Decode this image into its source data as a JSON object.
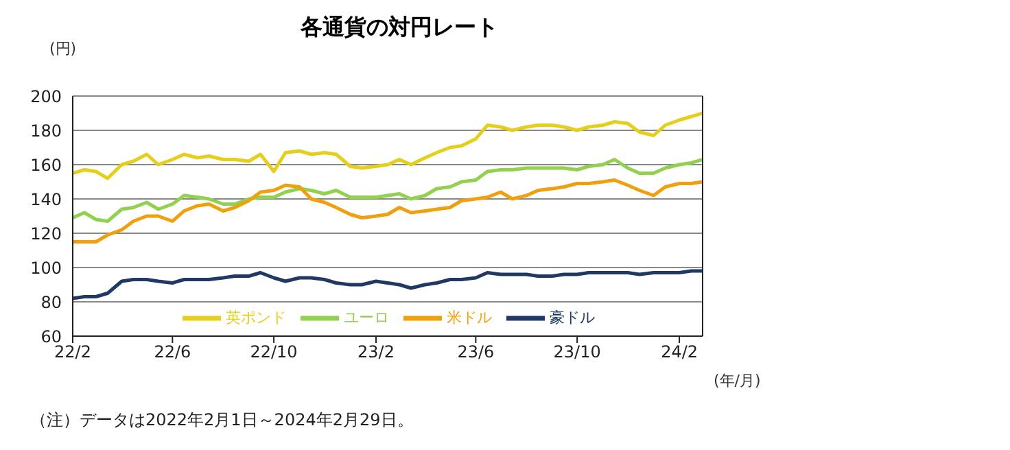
{
  "chart_data": {
    "type": "line",
    "title": "各通貨の対円レート",
    "ylabel": "(円)",
    "xlabel": "(年/月)",
    "annotations": [
      "（注）データは2022年2月1日～2024年2月29日。"
    ],
    "x": [
      "2022-02-01",
      "2022-02-15",
      "2022-03-01",
      "2022-03-15",
      "2022-04-01",
      "2022-04-15",
      "2022-05-01",
      "2022-05-15",
      "2022-06-01",
      "2022-06-15",
      "2022-07-01",
      "2022-07-15",
      "2022-08-01",
      "2022-08-15",
      "2022-09-01",
      "2022-09-15",
      "2022-10-01",
      "2022-10-15",
      "2022-11-01",
      "2022-11-15",
      "2022-12-01",
      "2022-12-15",
      "2023-01-01",
      "2023-01-15",
      "2023-02-01",
      "2023-02-15",
      "2023-03-01",
      "2023-03-15",
      "2023-04-01",
      "2023-04-15",
      "2023-05-01",
      "2023-05-15",
      "2023-06-01",
      "2023-06-15",
      "2023-07-01",
      "2023-07-15",
      "2023-08-01",
      "2023-08-15",
      "2023-09-01",
      "2023-09-15",
      "2023-10-01",
      "2023-10-15",
      "2023-11-01",
      "2023-11-15",
      "2023-12-01",
      "2023-12-15",
      "2024-01-01",
      "2024-01-15",
      "2024-02-01",
      "2024-02-15",
      "2024-02-29"
    ],
    "series": [
      {
        "name": "英ポンド",
        "color": "#e5cf1c",
        "values": [
          155,
          157,
          156,
          152,
          160,
          162,
          166,
          160,
          163,
          166,
          164,
          165,
          163,
          163,
          162,
          166,
          156,
          167,
          168,
          166,
          167,
          166,
          159,
          158,
          159,
          160,
          163,
          160,
          164,
          167,
          170,
          171,
          175,
          183,
          182,
          180,
          182,
          183,
          183,
          182,
          180,
          182,
          183,
          185,
          184,
          179,
          177,
          183,
          186,
          188,
          190
        ]
      },
      {
        "name": "ユーロ",
        "color": "#92d050",
        "values": [
          129,
          132,
          128,
          127,
          134,
          135,
          138,
          134,
          137,
          142,
          141,
          140,
          137,
          137,
          140,
          141,
          141,
          144,
          146,
          145,
          143,
          145,
          141,
          141,
          141,
          142,
          143,
          140,
          142,
          146,
          147,
          150,
          151,
          156,
          157,
          157,
          158,
          158,
          158,
          158,
          157,
          159,
          160,
          163,
          158,
          155,
          155,
          158,
          160,
          161,
          163
        ]
      },
      {
        "name": "米ドル",
        "color": "#f0a00f",
        "values": [
          115,
          115,
          115,
          119,
          122,
          127,
          130,
          130,
          127,
          133,
          136,
          137,
          133,
          135,
          139,
          144,
          145,
          148,
          147,
          140,
          138,
          135,
          131,
          129,
          130,
          131,
          135,
          132,
          133,
          134,
          135,
          139,
          140,
          141,
          144,
          140,
          142,
          145,
          146,
          147,
          149,
          149,
          150,
          151,
          148,
          145,
          142,
          147,
          149,
          149,
          150
        ]
      },
      {
        "name": "豪ドル",
        "color": "#1f3864",
        "values": [
          82,
          83,
          83,
          85,
          92,
          93,
          93,
          92,
          91,
          93,
          93,
          93,
          94,
          95,
          95,
          97,
          94,
          92,
          94,
          94,
          93,
          91,
          90,
          90,
          92,
          91,
          90,
          88,
          90,
          91,
          93,
          93,
          94,
          97,
          96,
          96,
          96,
          95,
          95,
          96,
          96,
          97,
          97,
          97,
          97,
          96,
          97,
          97,
          97,
          98,
          98
        ]
      }
    ],
    "xlim": [
      "2022-02-01",
      "2024-02-29"
    ],
    "xticks": [
      {
        "value": "2022-02-01",
        "label": "22/2"
      },
      {
        "value": "2022-06-01",
        "label": "22/6"
      },
      {
        "value": "2022-10-01",
        "label": "22/10"
      },
      {
        "value": "2023-02-01",
        "label": "23/2"
      },
      {
        "value": "2023-06-01",
        "label": "23/6"
      },
      {
        "value": "2023-10-01",
        "label": "23/10"
      },
      {
        "value": "2024-02-01",
        "label": "24/2"
      }
    ],
    "ylim": [
      60,
      200
    ],
    "yticks": [
      60,
      80,
      100,
      120,
      140,
      160,
      180,
      200
    ],
    "grid": "y",
    "legend": "bottom",
    "marker": "none",
    "line_style": "solid"
  }
}
